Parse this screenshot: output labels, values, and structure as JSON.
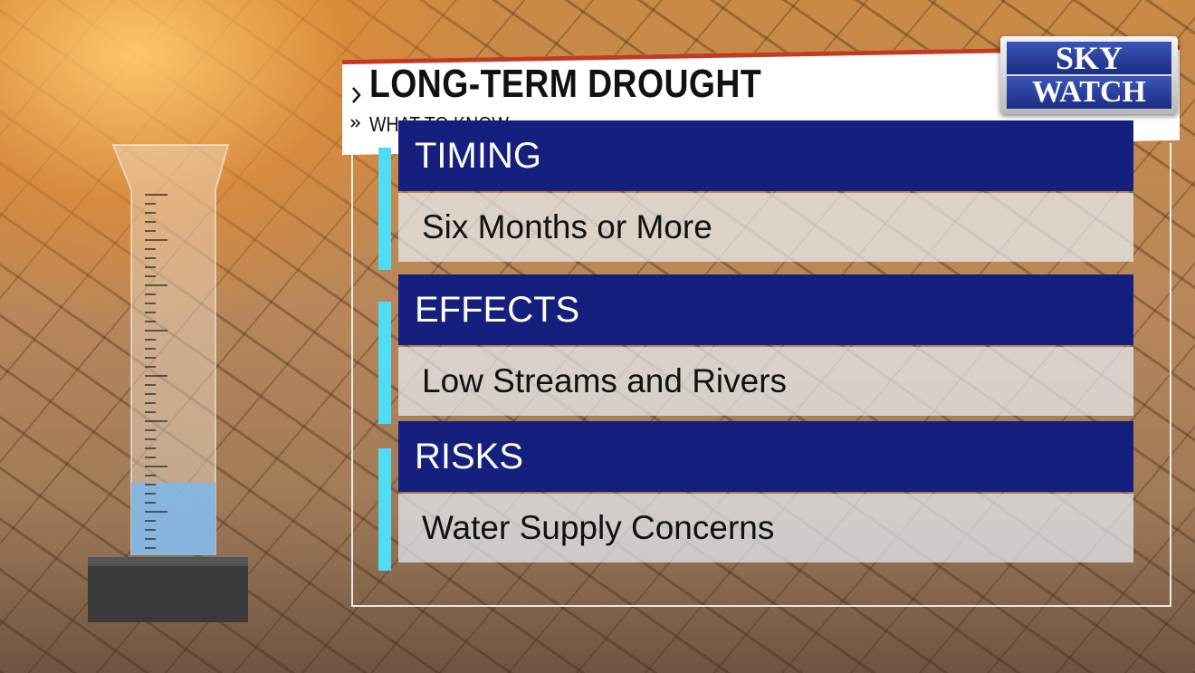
{
  "header": {
    "title": "LONG-TERM DROUGHT",
    "subtitle": "WHAT TO KNOW"
  },
  "logo": {
    "line1": "SKY",
    "line2": "WATCH"
  },
  "sections": [
    {
      "heading": "TIMING",
      "text": "Six Months or More"
    },
    {
      "heading": "EFFECTS",
      "text": "Low Streams and Rivers"
    },
    {
      "heading": "RISKS",
      "text": "Water Supply Concerns"
    }
  ]
}
